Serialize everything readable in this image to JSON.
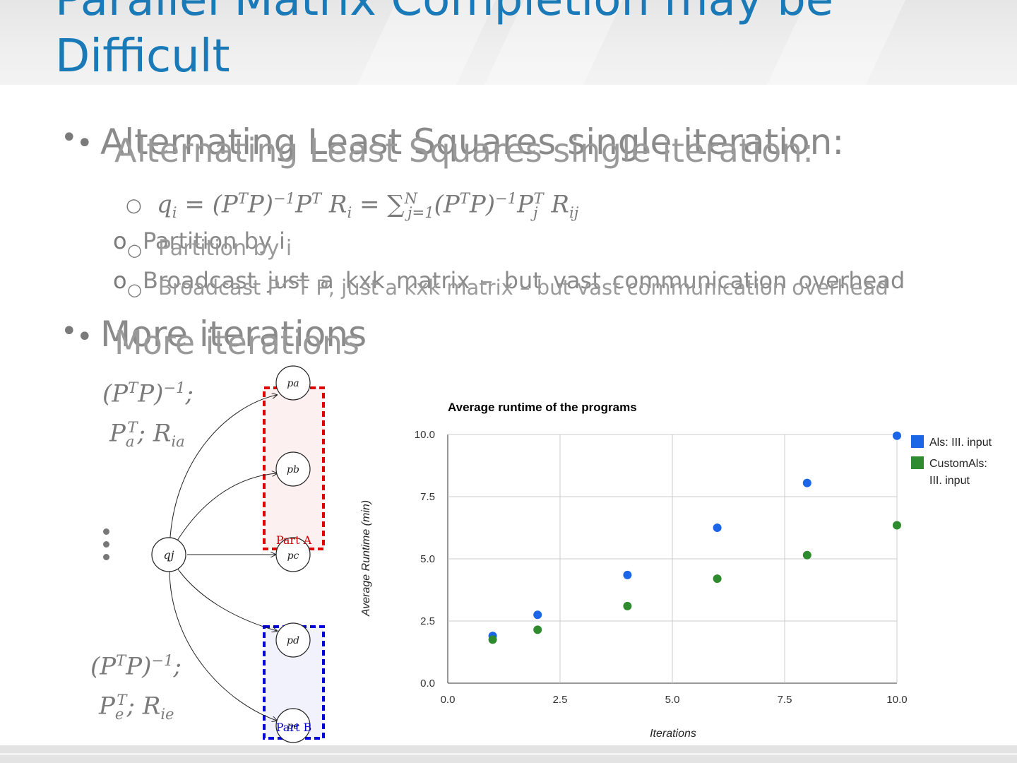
{
  "slide": {
    "title_line1": "Parallel Matrix Completion may be",
    "title_line2": "Difficult",
    "bullet1": "Alternating Least Squares single iteration:",
    "sub_equation": "q_i = (P^T P)^-1 P^T R_i = Σ_{j=1}^N (P^T P)^-1 P_j^T R_ij",
    "sub1": "Partition by i",
    "sub2_text": "Broadcast P^T P, just a kxk matrix – but vast communication overhead",
    "sub2_ghost": "Broadcast just a kxk matrix – but vast communication overhead",
    "bullet2": "More iterations",
    "bullet_char": "•",
    "sub_bullet_char": "o",
    "sub_bullet_char2": "○"
  },
  "diagram": {
    "center_node": "qj",
    "nodes": [
      "pa",
      "pb",
      "pc",
      "pd",
      "pe"
    ],
    "part_a_label": "Part A",
    "part_b_label": "Part B",
    "part_a_color": "#e00000",
    "part_b_color": "#0000dd",
    "annot_top_line1": "(P^T P)^-1;",
    "annot_top_line2": "Pa^T; Ria",
    "annot_bottom_line1": "(P^T P)^-1;",
    "annot_bottom_line2": "Pe^T; Rie",
    "ellipsis": "⋮"
  },
  "chart_data": {
    "type": "scatter",
    "title": "Average runtime of the programs",
    "xlabel": "Iterations",
    "ylabel": "Average Runtime (min)",
    "xlim": [
      0,
      10
    ],
    "ylim": [
      0,
      10
    ],
    "xticks": [
      "0.0",
      "2.5",
      "5.0",
      "7.5",
      "10.0"
    ],
    "yticks": [
      "0.0",
      "2.5",
      "5.0",
      "7.5",
      "10.0"
    ],
    "grid": true,
    "legend_position": "right",
    "series": [
      {
        "name": "Als: III. input",
        "color": "#1a66e6",
        "points": [
          [
            1,
            1.9
          ],
          [
            2,
            2.75
          ],
          [
            4,
            4.35
          ],
          [
            6,
            6.25
          ],
          [
            8,
            8.05
          ],
          [
            10,
            9.95
          ]
        ]
      },
      {
        "name": "CustomAls: III. input",
        "color": "#2e8b2e",
        "points": [
          [
            1,
            1.75
          ],
          [
            2,
            2.15
          ],
          [
            4,
            3.1
          ],
          [
            6,
            4.2
          ],
          [
            8,
            5.15
          ],
          [
            10,
            6.35
          ]
        ]
      }
    ],
    "legend_lines": [
      [
        "Als: III. input"
      ],
      [
        "CustomAls:",
        "III. input"
      ]
    ]
  }
}
